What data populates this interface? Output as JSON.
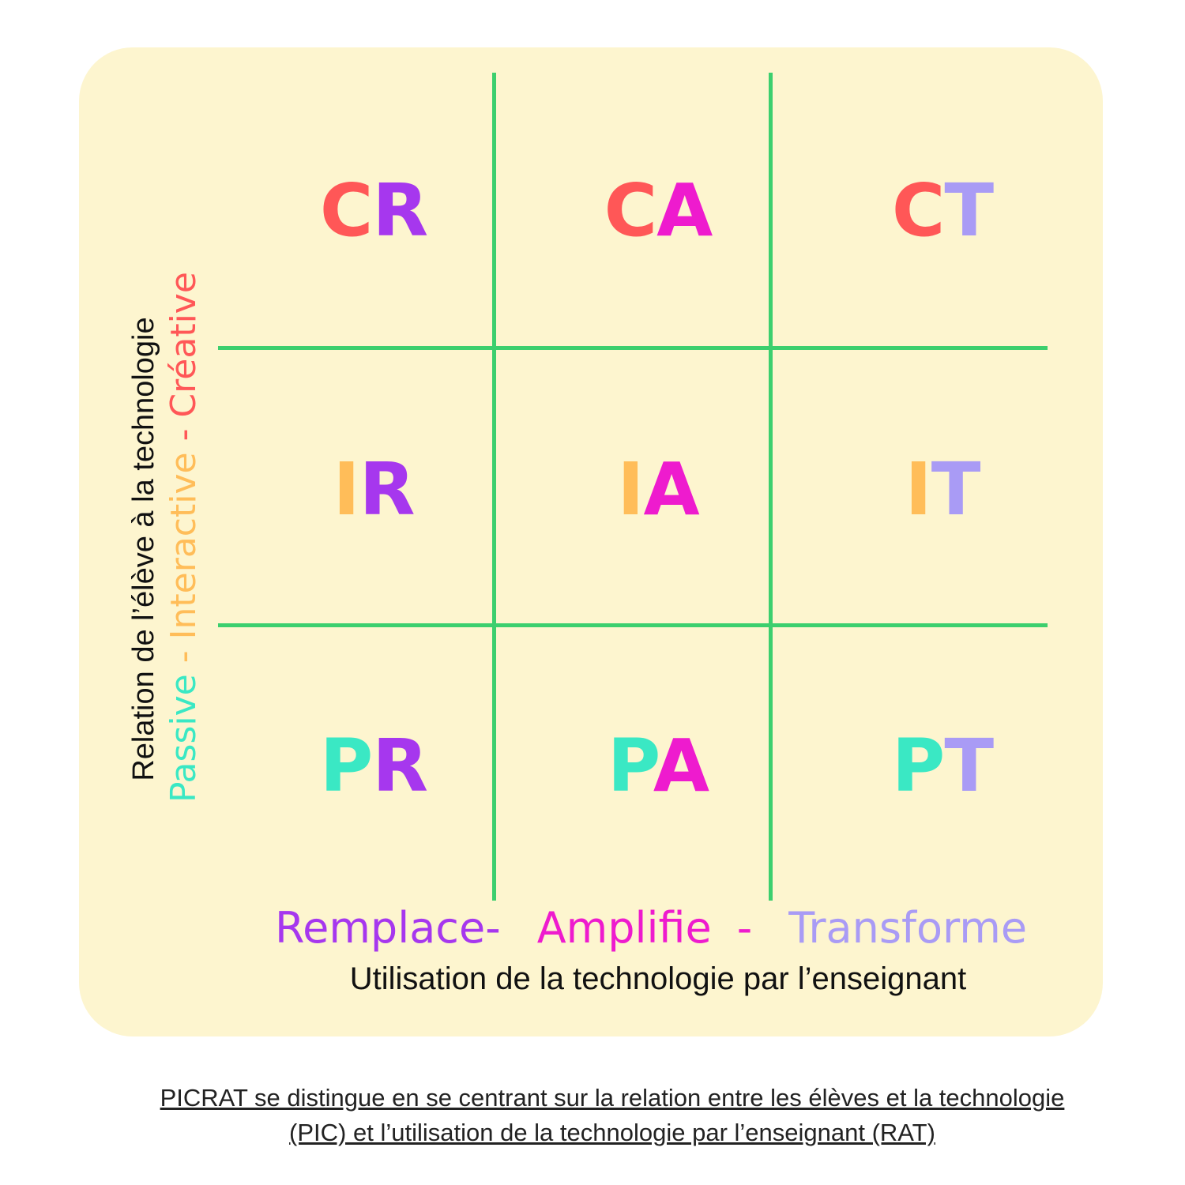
{
  "colors": {
    "C": "#ff5757",
    "I": "#ffbd59",
    "P": "#3ae8c4",
    "R": "#a637ee",
    "A": "#ee1bce",
    "T": "#a99bf5",
    "grid": "#3ccf6e",
    "panel": "#fdf5cf"
  },
  "y_axis": {
    "title": "Relation de l’élève à la technologie",
    "levels": [
      "Passive",
      "Interactive",
      "Créative"
    ],
    "separator": " - "
  },
  "x_axis": {
    "title": "Utilisation de la technologie par l’enseignant",
    "levels": [
      "Remplace",
      "Amplifie",
      "Transforme"
    ],
    "separator_1": "-",
    "separator_2": "-"
  },
  "grid": {
    "rows": [
      [
        {
          "first": "C",
          "second": "R"
        },
        {
          "first": "C",
          "second": "A"
        },
        {
          "first": "C",
          "second": "T"
        }
      ],
      [
        {
          "first": "I",
          "second": "R"
        },
        {
          "first": "I",
          "second": "A"
        },
        {
          "first": "I",
          "second": "T"
        }
      ],
      [
        {
          "first": "P",
          "second": "R"
        },
        {
          "first": "P",
          "second": "A"
        },
        {
          "first": "P",
          "second": "T"
        }
      ]
    ]
  },
  "caption": {
    "line1": "PICRAT se distingue en se centrant sur la relation entre les élèves et la technologie",
    "line2": "(PIC) et l’utilisation de la technologie par l’enseignant (RAT)"
  }
}
